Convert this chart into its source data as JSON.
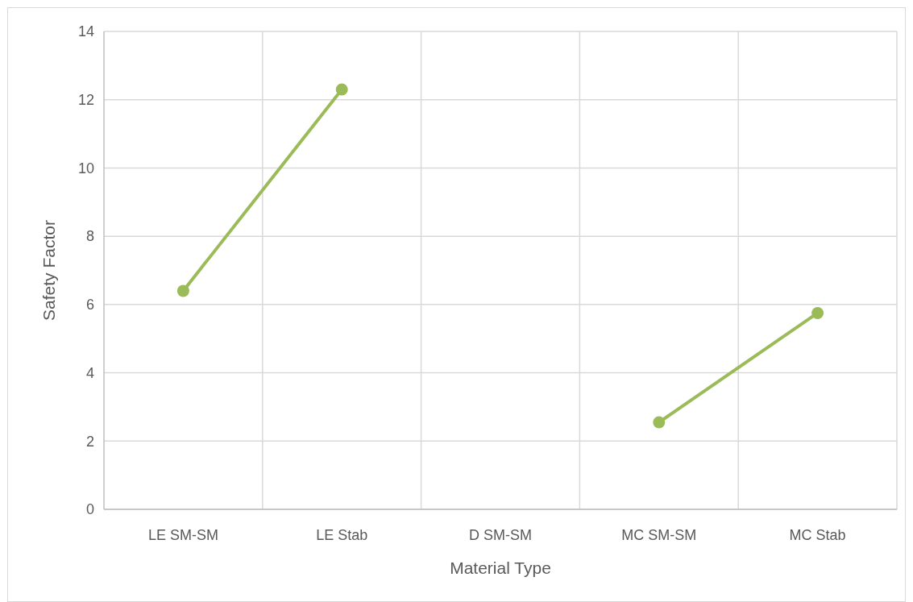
{
  "chart_data": {
    "type": "line",
    "xlabel": "Material Type",
    "ylabel": "Safety Factor",
    "categories": [
      "LE SM-SM",
      "LE Stab",
      "D SM-SM",
      "MC SM-SM",
      "MC Stab"
    ],
    "series": [
      {
        "color": "#9bbb59",
        "values": [
          6.4,
          12.3,
          null,
          2.55,
          5.75
        ]
      }
    ],
    "ylim": [
      0,
      14
    ],
    "yticks": [
      0,
      2,
      4,
      6,
      8,
      10,
      12,
      14
    ],
    "grid": true,
    "marker": "circle",
    "line_style": "solid"
  }
}
